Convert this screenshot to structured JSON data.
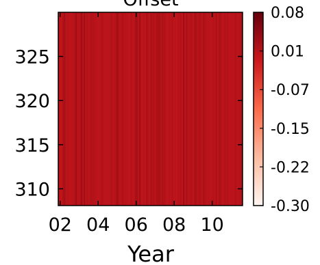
{
  "chart_data": {
    "type": "heatmap",
    "title": "Offset",
    "xlabel": "Year",
    "ylabel": "",
    "x_ticks": [
      "02",
      "04",
      "06",
      "08",
      "10"
    ],
    "x_tick_values": [
      2,
      4,
      6,
      8,
      10
    ],
    "xlim": [
      1.9,
      11.6
    ],
    "y_ticks": [
      "310",
      "315",
      "320",
      "325"
    ],
    "y_tick_values": [
      310,
      315,
      320,
      325
    ],
    "ylim": [
      308.1,
      330
    ],
    "colorbar": {
      "ticks": [
        "0.08",
        "0.01",
        "-0.07",
        "-0.15",
        "-0.22",
        "-0.30"
      ],
      "range": [
        -0.3,
        0.08
      ],
      "colormap": "Reds",
      "colors": [
        "#fff5f0",
        "#fcbba1",
        "#fb6a4a",
        "#cb181d",
        "#67000d"
      ]
    },
    "field_range": [
      -0.02,
      0.03
    ],
    "field_pattern": "vertical-stripes"
  }
}
